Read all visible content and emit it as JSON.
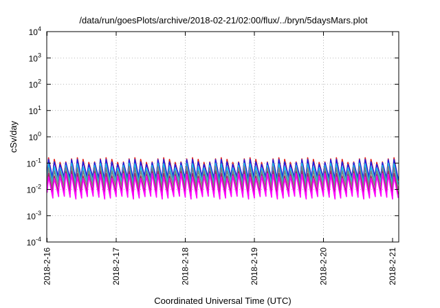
{
  "chart_data": {
    "type": "line",
    "title": "/data/run/goesPlots/archive/2018-02-21/02:00/flux/../bryn/5daysMars.plot",
    "xlabel": "Coordinated Universal Time (UTC)",
    "ylabel": "cSv/day",
    "yscale": "log",
    "ylim": [
      0.0001,
      10000
    ],
    "xlim": [
      "2018-02-16 00:00",
      "2018-02-21 02:00"
    ],
    "grid": true,
    "y_ticks": [
      {
        "base": "10",
        "exp": "-4"
      },
      {
        "base": "10",
        "exp": "-3"
      },
      {
        "base": "10",
        "exp": "-2"
      },
      {
        "base": "10",
        "exp": "-1"
      },
      {
        "base": "10",
        "exp": "0"
      },
      {
        "base": "10",
        "exp": "1"
      },
      {
        "base": "10",
        "exp": "2"
      },
      {
        "base": "10",
        "exp": "3"
      },
      {
        "base": "10",
        "exp": "4"
      }
    ],
    "x_ticks": [
      "2018-2-16",
      "2018-2-17",
      "2018-2-18",
      "2018-2-19",
      "2018-2-20",
      "2018-2-21"
    ],
    "pattern": {
      "period_hours": 2,
      "duration_hours": 122
    },
    "series": [
      {
        "color": "#e0201c",
        "peak": 0.16,
        "trough": 0.025
      },
      {
        "color": "#2020e0",
        "peak": 0.14,
        "trough": 0.028
      },
      {
        "color": "#20c0e0",
        "peak": 0.1,
        "trough": 0.018
      },
      {
        "color": "#808080",
        "peak": 0.075,
        "trough": 0.012
      },
      {
        "color": "#a02070",
        "peak": 0.05,
        "trough": 0.0075
      },
      {
        "color": "#ff00ff",
        "peak": 0.04,
        "trough": 0.0055
      }
    ]
  }
}
